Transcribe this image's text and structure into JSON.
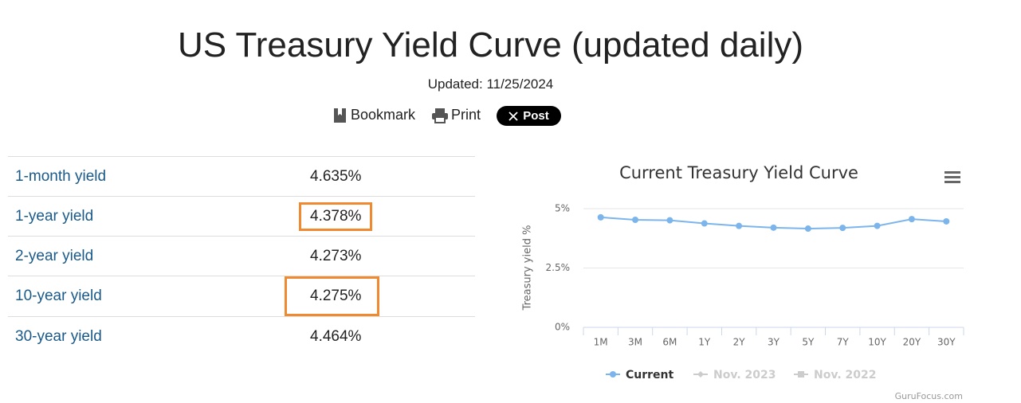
{
  "header": {
    "title": "US Treasury Yield Curve (updated daily)",
    "updated": "Updated: 11/25/2024",
    "actions": [
      "Bookmark",
      "Print",
      "Post"
    ]
  },
  "table": {
    "rows": [
      [
        "1-month yield",
        "4.635%"
      ],
      [
        "1-year yield",
        "4.378%"
      ],
      [
        "2-year yield",
        "4.273%"
      ],
      [
        "10-year yield",
        "4.275%"
      ],
      [
        "30-year yield",
        "4.464%"
      ]
    ]
  },
  "chart_data": {
    "type": "line",
    "title": "Current Treasury Yield Curve",
    "y_label": "Treasury yield %",
    "categories": [
      "1M",
      "3M",
      "6M",
      "1Y",
      "2Y",
      "3Y",
      "5Y",
      "7Y",
      "10Y",
      "20Y",
      "30Y"
    ],
    "series": [
      {
        "name": "Current",
        "color": "#7cb5ec",
        "values": [
          4.635,
          4.53,
          4.51,
          4.378,
          4.273,
          4.2,
          4.16,
          4.19,
          4.275,
          4.56,
          4.464
        ]
      },
      {
        "name": "Nov. 2023",
        "color": "#cccccc",
        "visible": false
      },
      {
        "name": "Nov. 2022",
        "color": "#cccccc",
        "visible": false
      }
    ],
    "ylim": [
      0,
      5
    ],
    "yticks": [
      {
        "value": 0,
        "label": "0%"
      },
      {
        "value": 2.5,
        "label": "2.5%"
      },
      {
        "value": 5,
        "label": "5%"
      }
    ],
    "grid": true,
    "credit": "GuruFocus.com"
  }
}
